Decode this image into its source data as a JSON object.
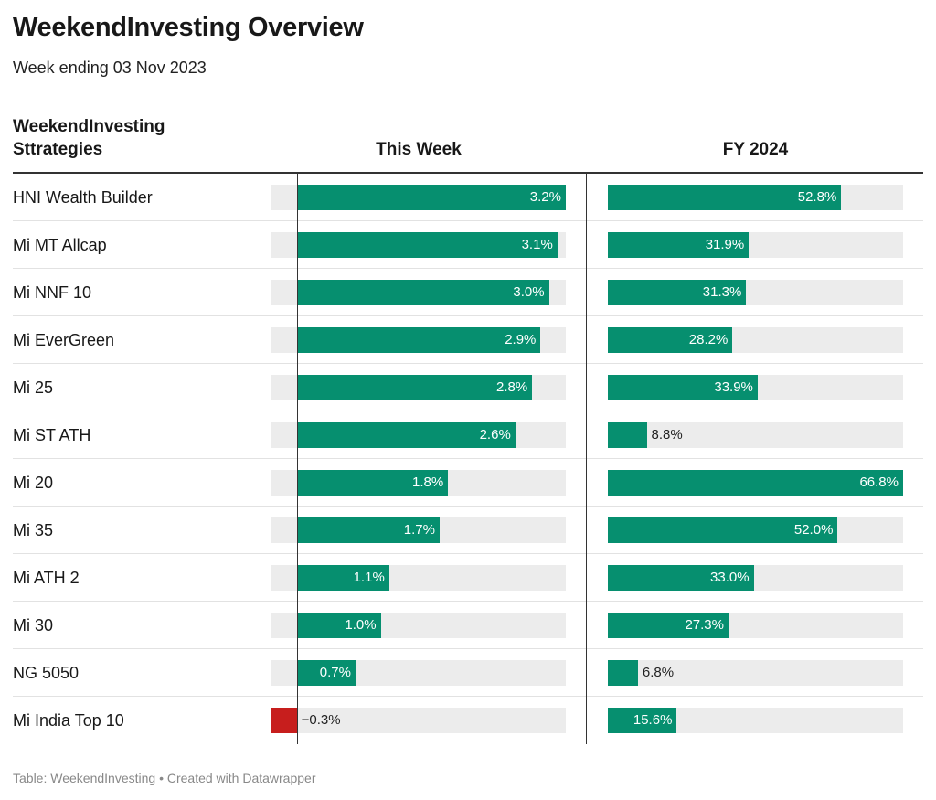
{
  "title": "WeekendInvesting Overview",
  "subtitle": "Week ending 03 Nov 2023",
  "columns": {
    "strategy_header": "WeekendInvesting Sttrategies",
    "week_header": "This Week",
    "fy_header": "FY 2024"
  },
  "footer": "Table: WeekendInvesting • Created with Datawrapper",
  "colors": {
    "positive": "#068f6f",
    "negative": "#c71e1d",
    "track": "#ececec"
  },
  "chart_data": {
    "type": "bar",
    "orientation": "horizontal",
    "categories": [
      "HNI Wealth Builder",
      "Mi MT Allcap",
      "Mi NNF 10",
      "Mi EverGreen",
      "Mi 25",
      "Mi ST ATH",
      "Mi 20",
      "Mi 35",
      "Mi ATH 2",
      "Mi 30",
      "NG 5050",
      "Mi India Top 10"
    ],
    "series": [
      {
        "name": "This Week",
        "values": [
          3.2,
          3.1,
          3.0,
          2.9,
          2.8,
          2.6,
          1.8,
          1.7,
          1.1,
          1.0,
          0.7,
          -0.3
        ],
        "labels": [
          "3.2%",
          "3.1%",
          "3.0%",
          "2.9%",
          "2.8%",
          "2.6%",
          "1.8%",
          "1.7%",
          "1.1%",
          "1.0%",
          "0.7%",
          "−0.3%"
        ],
        "xlim": [
          -0.3,
          3.2
        ]
      },
      {
        "name": "FY 2024",
        "values": [
          52.8,
          31.9,
          31.3,
          28.2,
          33.9,
          8.8,
          66.8,
          52.0,
          33.0,
          27.3,
          6.8,
          15.6
        ],
        "labels": [
          "52.8%",
          "31.9%",
          "31.3%",
          "28.2%",
          "33.9%",
          "8.8%",
          "66.8%",
          "52.0%",
          "33.0%",
          "27.3%",
          "6.8%",
          "15.6%"
        ],
        "xlim": [
          0,
          66.8
        ]
      }
    ]
  }
}
